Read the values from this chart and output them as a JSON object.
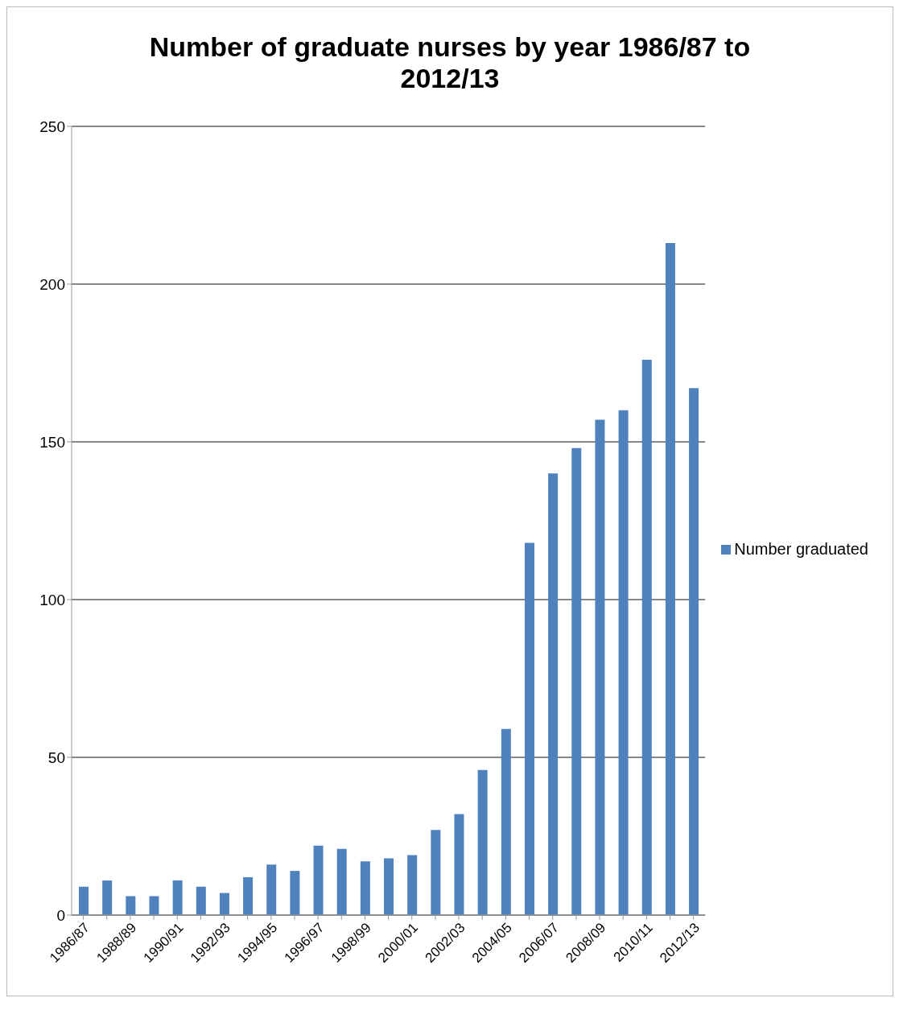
{
  "chart_data": {
    "type": "bar",
    "title": "Number of graduate nurses by year 1986/87 to 2012/13",
    "categories": [
      "1986/87",
      null,
      "1988/89",
      null,
      "1990/91",
      null,
      "1992/93",
      null,
      "1994/95",
      null,
      "1996/97",
      null,
      "1998/99",
      null,
      "2000/01",
      null,
      "2002/03",
      null,
      "2004/05",
      null,
      "2006/07",
      null,
      "2008/09",
      null,
      "2010/11",
      null,
      "2012/13"
    ],
    "series": [
      {
        "name": "Number graduated",
        "color": "#4f81bd",
        "values": [
          9,
          11,
          6,
          6,
          11,
          9,
          7,
          12,
          16,
          14,
          22,
          21,
          17,
          18,
          19,
          27,
          32,
          46,
          59,
          118,
          140,
          148,
          157,
          160,
          176,
          213,
          167
        ]
      }
    ],
    "ylim": [
      0,
      250
    ],
    "yticks": [
      0,
      50,
      100,
      150,
      200,
      250
    ],
    "grid": "y",
    "legend": "right"
  }
}
